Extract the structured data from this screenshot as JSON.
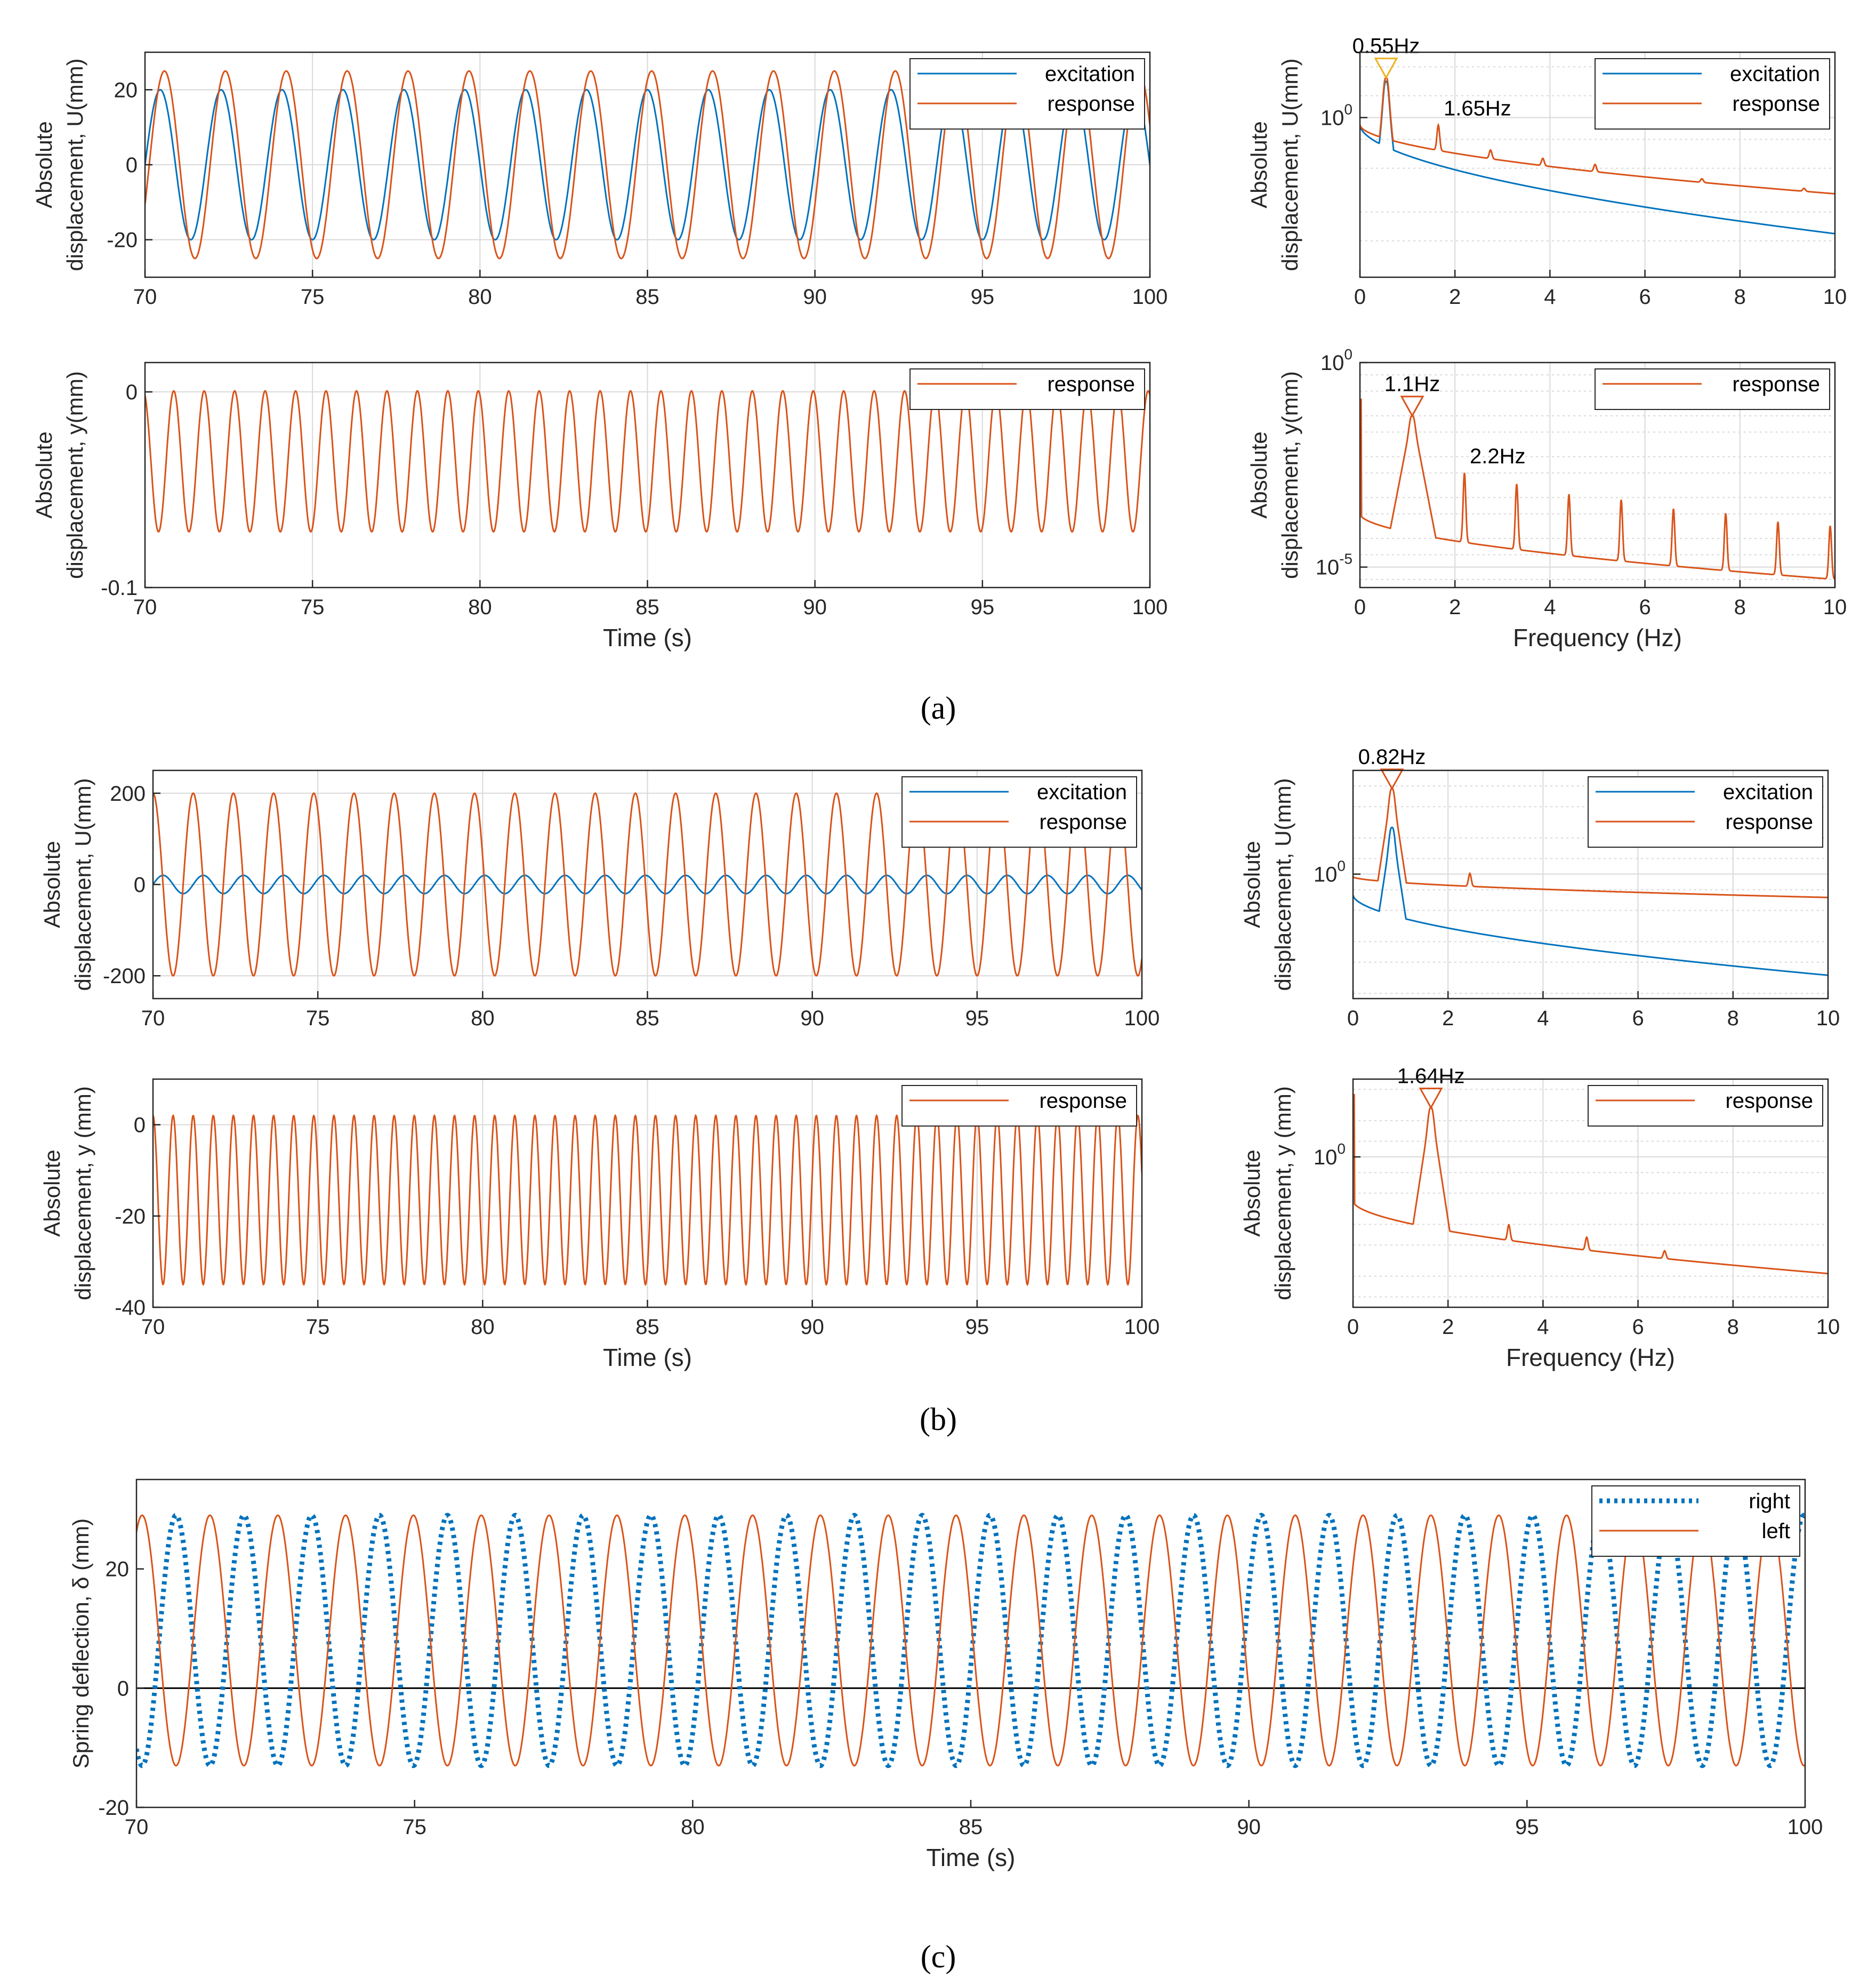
{
  "colors": {
    "excitation": "#0072BD",
    "response": "#D95319",
    "grid": "#d9d9d9",
    "axis": "#262626",
    "marker": "#EDB120"
  },
  "panel_labels": [
    "(a)",
    "(b)",
    "(c)"
  ],
  "chart_data": [
    {
      "id": "a-time-U",
      "type": "line",
      "row": "a",
      "col": "left",
      "xlabel": "",
      "ylabel": [
        "Absolute",
        "displacement, U(mm)"
      ],
      "xlim": [
        70,
        100
      ],
      "ylim": [
        -30,
        30
      ],
      "xticks": [
        70,
        75,
        80,
        85,
        90,
        95,
        100
      ],
      "yticks": [
        -20,
        0,
        20
      ],
      "ytick_labels": [
        "-20",
        "0",
        "20"
      ],
      "grid": true,
      "legend": "top-right",
      "series": [
        {
          "name": "excitation",
          "color_key": "excitation",
          "wave": {
            "kind": "sine",
            "amplitude": 20,
            "offset": 0,
            "freq_hz": 0.55,
            "phase_deg": 0
          }
        },
        {
          "name": "response",
          "color_key": "response",
          "wave": {
            "kind": "sine",
            "amplitude": 25,
            "offset": 0,
            "freq_hz": 0.55,
            "phase_deg": -25
          }
        }
      ]
    },
    {
      "id": "a-freq-U",
      "type": "line",
      "row": "a",
      "col": "right",
      "xlabel": "",
      "ylabel": [
        "Absolute",
        "displacement, U(mm)"
      ],
      "yscale": "log",
      "xlim": [
        0,
        10
      ],
      "ylim_log10": [
        -2.2,
        0.9
      ],
      "xticks": [
        0,
        2,
        4,
        6,
        8,
        10
      ],
      "yticks_log10": [
        0
      ],
      "ytick_labels": [
        "10^0"
      ],
      "grid": true,
      "legend": "top-right",
      "annotations": [
        {
          "text": "0.55Hz",
          "x": 0.55,
          "marker": true
        },
        {
          "text": "1.65Hz",
          "x": 1.65,
          "marker": false
        }
      ],
      "series": [
        {
          "name": "excitation",
          "color_key": "excitation",
          "spectrum": {
            "peak_hz": 0.55,
            "peak_log10": 0.5,
            "base_log10_at_0": -0.1,
            "end_log10": -1.6,
            "harmonics": []
          }
        },
        {
          "name": "response",
          "color_key": "response",
          "spectrum": {
            "peak_hz": 0.55,
            "peak_log10": 0.55,
            "base_log10_at_0": -0.1,
            "end_log10": -1.05,
            "harmonics": [
              [
                1.65,
                0.35
              ],
              [
                2.75,
                0.12
              ],
              [
                3.85,
                0.1
              ],
              [
                4.95,
                0.1
              ],
              [
                7.2,
                0.05
              ],
              [
                9.35,
                0.04
              ]
            ]
          }
        }
      ]
    },
    {
      "id": "a-time-y",
      "type": "line",
      "row": "a",
      "col": "left",
      "xlabel": "Time (s)",
      "ylabel": [
        "Absolute",
        "displacement, y(mm)"
      ],
      "xlim": [
        70,
        100
      ],
      "ylim": [
        -0.1,
        0.015
      ],
      "xticks": [
        70,
        75,
        80,
        85,
        90,
        95,
        100
      ],
      "yticks": [
        -0.1,
        0
      ],
      "ytick_labels": [
        "-0.1",
        "0"
      ],
      "grid": true,
      "legend": "top-right",
      "series": [
        {
          "name": "response",
          "color_key": "response",
          "wave": {
            "kind": "sine",
            "amplitude": 0.036,
            "offset": -0.0355,
            "freq_hz": 1.1,
            "phase_deg": 110
          }
        }
      ]
    },
    {
      "id": "a-freq-y",
      "type": "line",
      "row": "a",
      "col": "right",
      "xlabel": "Frequency (Hz)",
      "ylabel": [
        "Absolute",
        "displacement, y(mm)"
      ],
      "yscale": "log",
      "xlim": [
        0,
        10
      ],
      "ylim_log10": [
        -5.5,
        0
      ],
      "xticks": [
        0,
        2,
        4,
        6,
        8,
        10
      ],
      "yticks_log10": [
        0,
        -5
      ],
      "ytick_labels": [
        "10^0",
        "10^-5"
      ],
      "grid": true,
      "legend": "top-right",
      "annotations": [
        {
          "text": "1.1Hz",
          "x": 1.1,
          "marker": true
        },
        {
          "text": "2.2Hz",
          "x": 2.2,
          "marker": false
        }
      ],
      "series": [
        {
          "name": "response",
          "color_key": "response",
          "spectrum": {
            "peak_hz": 1.1,
            "peak_log10": -1.3,
            "base_log10_at_0": -3.7,
            "end_log10": -5.3,
            "dc_log10": -0.9,
            "harmonics": [
              [
                2.2,
                1.7
              ],
              [
                3.3,
                1.6
              ],
              [
                4.4,
                1.5
              ],
              [
                5.5,
                1.5
              ],
              [
                6.6,
                1.4
              ],
              [
                7.7,
                1.4
              ],
              [
                8.8,
                1.3
              ],
              [
                9.9,
                1.3
              ]
            ]
          }
        }
      ]
    },
    {
      "id": "b-time-U",
      "type": "line",
      "row": "b",
      "col": "left",
      "xlabel": "",
      "ylabel": [
        "Absolute",
        "displacement, U(mm)"
      ],
      "xlim": [
        70,
        100
      ],
      "ylim": [
        -250,
        250
      ],
      "xticks": [
        70,
        75,
        80,
        85,
        90,
        95,
        100
      ],
      "yticks": [
        -200,
        0,
        200
      ],
      "ytick_labels": [
        "-200",
        "0",
        "200"
      ],
      "grid": true,
      "legend": "top-right",
      "series": [
        {
          "name": "excitation",
          "color_key": "excitation",
          "wave": {
            "kind": "sine",
            "amplitude": 20,
            "offset": 0,
            "freq_hz": 0.82,
            "phase_deg": 0
          }
        },
        {
          "name": "response",
          "color_key": "response",
          "wave": {
            "kind": "sine",
            "amplitude": 200,
            "offset": 0,
            "freq_hz": 0.82,
            "phase_deg": 90
          }
        }
      ]
    },
    {
      "id": "b-freq-U",
      "type": "line",
      "row": "b",
      "col": "right",
      "xlabel": "",
      "ylabel": [
        "Absolute",
        "displacement, U(mm)"
      ],
      "yscale": "log",
      "xlim": [
        0,
        10
      ],
      "ylim_log10": [
        -2.4,
        2.0
      ],
      "xticks": [
        0,
        2,
        4,
        6,
        8,
        10
      ],
      "yticks_log10": [
        0
      ],
      "ytick_labels": [
        "10^0"
      ],
      "grid": true,
      "legend": "top-right",
      "annotations": [
        {
          "text": "0.82Hz",
          "x": 0.82,
          "marker": true
        }
      ],
      "series": [
        {
          "name": "excitation",
          "color_key": "excitation",
          "spectrum": {
            "peak_hz": 0.82,
            "peak_log10": 0.9,
            "base_log10_at_0": -0.4,
            "end_log10": -1.95,
            "harmonics": []
          }
        },
        {
          "name": "response",
          "color_key": "response",
          "spectrum": {
            "peak_hz": 0.82,
            "peak_log10": 1.65,
            "base_log10_at_0": -0.05,
            "end_log10": -0.45,
            "harmonics": [
              [
                2.46,
                0.25
              ]
            ]
          }
        }
      ]
    },
    {
      "id": "b-time-y",
      "type": "line",
      "row": "b",
      "col": "left",
      "xlabel": "Time (s)",
      "ylabel": [
        "Absolute",
        "displacement, y (mm)"
      ],
      "xlim": [
        70,
        100
      ],
      "ylim": [
        -40,
        10
      ],
      "xticks": [
        70,
        75,
        80,
        85,
        90,
        95,
        100
      ],
      "yticks": [
        -40,
        -20,
        0
      ],
      "ytick_labels": [
        "-40",
        "-20",
        "0"
      ],
      "grid": true,
      "legend": "top-right",
      "series": [
        {
          "name": "response",
          "color_key": "response",
          "wave": {
            "kind": "sine",
            "amplitude": 18.5,
            "offset": -16.5,
            "freq_hz": 1.64,
            "phase_deg": 90
          }
        }
      ]
    },
    {
      "id": "b-freq-y",
      "type": "line",
      "row": "b",
      "col": "right",
      "xlabel": "Frequency (Hz)",
      "ylabel": [
        "Absolute",
        "displacement, y (mm)"
      ],
      "yscale": "log",
      "xlim": [
        0,
        10
      ],
      "ylim_log10": [
        -2.9,
        1.5
      ],
      "xticks": [
        0,
        2,
        4,
        6,
        8,
        10
      ],
      "yticks_log10": [
        0
      ],
      "ytick_labels": [
        "10^0"
      ],
      "xtick_labels": [
        "0",
        "2",
        "4",
        "6",
        "8",
        "10"
      ],
      "grid": true,
      "legend": "top-right",
      "annotations": [
        {
          "text": "1.64Hz",
          "x": 1.64,
          "marker": true
        }
      ],
      "series": [
        {
          "name": "response",
          "color_key": "response",
          "spectrum": {
            "peak_hz": 1.64,
            "peak_log10": 0.95,
            "base_log10_at_0": -0.85,
            "end_log10": -2.25,
            "dc_log10": 1.2,
            "harmonics": [
              [
                3.28,
                0.3
              ],
              [
                4.92,
                0.25
              ],
              [
                6.56,
                0.15
              ]
            ]
          }
        }
      ]
    },
    {
      "id": "c-time-delta",
      "type": "line",
      "row": "c",
      "col": "full",
      "xlabel": "Time (s)",
      "ylabel": [
        "Spring deflection, δ (mm)"
      ],
      "xlim": [
        70,
        100
      ],
      "ylim": [
        -20,
        35
      ],
      "xticks": [
        70,
        75,
        80,
        85,
        90,
        95,
        100
      ],
      "yticks": [
        -20,
        0,
        20
      ],
      "ytick_labels": [
        "-20",
        "0",
        "20"
      ],
      "grid": false,
      "legend": "top-right",
      "zero_line": true,
      "series": [
        {
          "name": "right",
          "color_key": "excitation",
          "dotted": true,
          "wave": {
            "kind": "sine",
            "amplitude": 21,
            "offset": 8,
            "freq_hz": 0.82,
            "phase_deg": -120
          }
        },
        {
          "name": "left",
          "color_key": "response",
          "wave": {
            "kind": "sine",
            "amplitude": 21,
            "offset": 8,
            "freq_hz": 0.82,
            "phase_deg": 60
          }
        }
      ]
    }
  ]
}
